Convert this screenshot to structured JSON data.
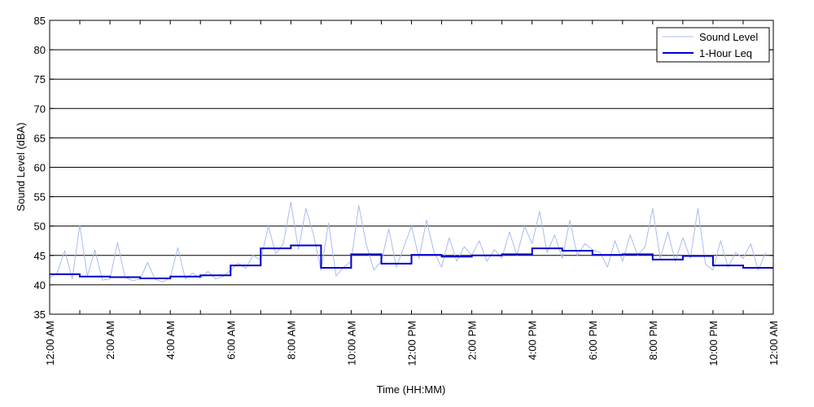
{
  "chart_data": {
    "type": "line",
    "xlabel": "Time (HH:MM)",
    "ylabel": "Sound Level (dBA)",
    "ylim": [
      35,
      85
    ],
    "yticks": [
      35,
      40,
      45,
      50,
      55,
      60,
      65,
      70,
      75,
      80,
      85
    ],
    "xlim": [
      0,
      24
    ],
    "x_tick_hours": [
      0,
      2,
      4,
      6,
      8,
      10,
      12,
      14,
      16,
      18,
      20,
      22,
      24
    ],
    "x_tick_labels": [
      "12:00 AM",
      "2:00 AM",
      "4:00 AM",
      "6:00 AM",
      "8:00 AM",
      "10:00 AM",
      "12:00 PM",
      "2:00 PM",
      "4:00 PM",
      "6:00 PM",
      "8:00 PM",
      "10:00 PM",
      "12:00 AM"
    ],
    "grid": "horizontal",
    "legend_position": "top-right",
    "series": [
      {
        "name": "Sound Level",
        "color": "#a8bcf0",
        "style": "thin-noisy-line",
        "hours": [
          0,
          0.25,
          0.5,
          0.75,
          1,
          1.25,
          1.5,
          1.75,
          2,
          2.25,
          2.5,
          2.75,
          3,
          3.25,
          3.5,
          3.75,
          4,
          4.25,
          4.5,
          4.75,
          5,
          5.25,
          5.5,
          5.75,
          6,
          6.25,
          6.5,
          6.75,
          7,
          7.25,
          7.5,
          7.75,
          8,
          8.25,
          8.5,
          8.75,
          9,
          9.25,
          9.5,
          9.75,
          10,
          10.25,
          10.5,
          10.75,
          11,
          11.25,
          11.5,
          11.75,
          12,
          12.25,
          12.5,
          12.75,
          13,
          13.25,
          13.5,
          13.75,
          14,
          14.25,
          14.5,
          14.75,
          15,
          15.25,
          15.5,
          15.75,
          16,
          16.25,
          16.5,
          16.75,
          17,
          17.25,
          17.5,
          17.75,
          18,
          18.25,
          18.5,
          18.75,
          19,
          19.25,
          19.5,
          19.75,
          20,
          20.25,
          20.5,
          20.75,
          21,
          21.25,
          21.5,
          21.75,
          22,
          22.25,
          22.5,
          22.75,
          23,
          23.25,
          23.5,
          23.75
        ],
        "values": [
          41.2,
          42.0,
          45.8,
          41.0,
          50.2,
          41.5,
          45.9,
          40.8,
          41.0,
          47.2,
          41.3,
          40.7,
          41.0,
          43.8,
          40.9,
          40.5,
          41.2,
          46.3,
          41.0,
          42.0,
          41.1,
          42.3,
          41.0,
          41.4,
          42.5,
          43.7,
          42.8,
          45.0,
          44.2,
          50.0,
          45.3,
          47.0,
          54.1,
          46.0,
          53.0,
          48.5,
          42.5,
          50.5,
          41.5,
          43.0,
          44.0,
          53.5,
          47.0,
          42.5,
          44.0,
          49.5,
          43.0,
          46.5,
          50.0,
          44.5,
          51.0,
          45.5,
          43.0,
          48.0,
          44.0,
          46.5,
          45.0,
          47.5,
          44.0,
          46.0,
          44.5,
          49.0,
          45.0,
          50.0,
          47.0,
          52.5,
          45.5,
          48.5,
          44.5,
          51.0,
          45.0,
          47.0,
          46.0,
          45.5,
          43.0,
          47.5,
          44.0,
          48.5,
          45.0,
          46.5,
          53.0,
          44.5,
          49.0,
          44.0,
          48.0,
          44.5,
          53.0,
          43.5,
          42.5,
          47.5,
          43.0,
          45.5,
          44.5,
          47.0,
          42.5,
          45.5
        ]
      },
      {
        "name": "1-Hour Leq",
        "color": "#0000cc",
        "style": "step",
        "hours": [
          0,
          1,
          2,
          3,
          4,
          5,
          6,
          7,
          8,
          9,
          10,
          11,
          12,
          13,
          14,
          15,
          16,
          17,
          18,
          19,
          20,
          21,
          22,
          23
        ],
        "values": [
          41.8,
          41.4,
          41.3,
          41.1,
          41.4,
          41.6,
          43.3,
          46.2,
          46.7,
          42.9,
          45.2,
          43.6,
          45.1,
          44.8,
          45.0,
          45.2,
          46.2,
          45.8,
          45.1,
          45.2,
          44.3,
          44.9,
          43.3,
          42.9
        ]
      }
    ]
  }
}
